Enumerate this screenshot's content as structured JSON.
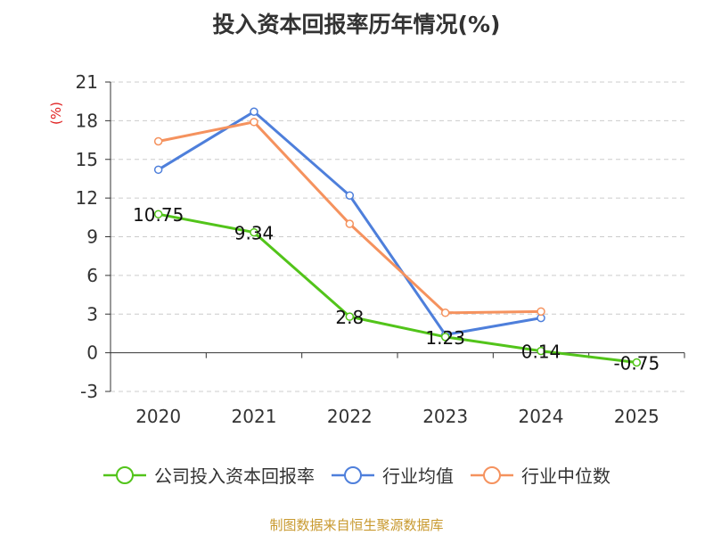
{
  "colors": {
    "company": "#52c41a",
    "industry_avg": "#4e7fdb",
    "industry_median": "#f5925e",
    "grid": "#cccccc",
    "axis": "#333333",
    "unit_label": "#e02020",
    "source": "#c8992e"
  },
  "source_note": "制图数据来自恒生聚源数据库",
  "chart_data": {
    "type": "line",
    "title": "投入资本回报率历年情况(%)",
    "ylabel": "(%)",
    "xlabel": "",
    "categories": [
      "2020",
      "2021",
      "2022",
      "2023",
      "2024",
      "2025"
    ],
    "ylim": [
      -3,
      21
    ],
    "yticks": [
      -3,
      0,
      3,
      6,
      9,
      12,
      15,
      18,
      21
    ],
    "grid": true,
    "legend_position": "bottom",
    "series": [
      {
        "key": "company",
        "name": "公司投入资本回报率",
        "values": [
          10.75,
          9.34,
          2.8,
          1.23,
          0.14,
          -0.75
        ],
        "labels": [
          "10.75",
          "9.34",
          "2.8",
          "1.23",
          "0.14",
          "-0.75"
        ]
      },
      {
        "key": "industry_avg",
        "name": "行业均值",
        "values": [
          14.2,
          18.7,
          12.2,
          1.4,
          2.7,
          null
        ]
      },
      {
        "key": "industry_median",
        "name": "行业中位数",
        "values": [
          16.4,
          17.9,
          10.0,
          3.1,
          3.2,
          null
        ]
      }
    ]
  }
}
